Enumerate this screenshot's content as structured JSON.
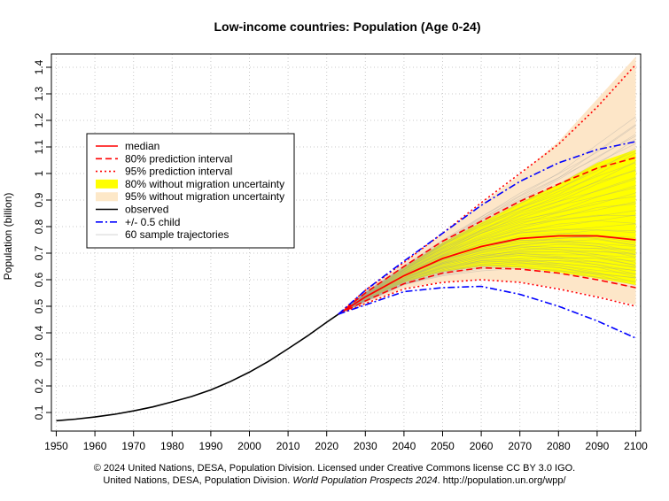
{
  "chart_data": {
    "type": "line",
    "title": "Low-income countries: Population (Age 0-24)",
    "xlabel": "",
    "ylabel": "Population (billion)",
    "xlim": [
      1950,
      2100
    ],
    "ylim": [
      0.03,
      1.45
    ],
    "x_ticks": [
      "1950",
      "1960",
      "1970",
      "1980",
      "1990",
      "2000",
      "2010",
      "2020",
      "2030",
      "2040",
      "2050",
      "2060",
      "2070",
      "2080",
      "2090",
      "2100"
    ],
    "y_ticks": [
      "0.1",
      "0.2",
      "0.3",
      "0.4",
      "0.5",
      "0.6",
      "0.7",
      "0.8",
      "0.9",
      "1",
      "1.1",
      "1.2",
      "1.3",
      "1.4"
    ],
    "grid": true,
    "legend_position": "top-left",
    "legend": [
      {
        "label": "median",
        "style": "solid",
        "color": "#ff0000"
      },
      {
        "label": "80% prediction interval",
        "style": "dashed",
        "color": "#ff0000"
      },
      {
        "label": "95% prediction interval",
        "style": "dotted",
        "color": "#ff0000"
      },
      {
        "label": "80% without migration uncertainty",
        "style": "band",
        "color": "#ffff00"
      },
      {
        "label": "95% without migration uncertainty",
        "style": "band",
        "color": "#fde8c8"
      },
      {
        "label": "observed",
        "style": "solid",
        "color": "#000000"
      },
      {
        "label": "+/- 0.5 child",
        "style": "dashdot",
        "color": "#0000ff"
      },
      {
        "label": "60 sample trajectories",
        "style": "thin",
        "color": "#d3d3d3"
      }
    ],
    "series": [
      {
        "name": "observed",
        "x": [
          1950,
          1955,
          1960,
          1965,
          1970,
          1975,
          1980,
          1985,
          1990,
          1995,
          2000,
          2005,
          2010,
          2015,
          2020,
          2023
        ],
        "values": [
          0.069,
          0.075,
          0.083,
          0.093,
          0.106,
          0.121,
          0.14,
          0.16,
          0.185,
          0.216,
          0.252,
          0.293,
          0.34,
          0.388,
          0.44,
          0.47
        ]
      },
      {
        "name": "median",
        "x": [
          2023,
          2030,
          2040,
          2050,
          2060,
          2070,
          2080,
          2090,
          2100
        ],
        "values": [
          0.47,
          0.535,
          0.615,
          0.68,
          0.725,
          0.755,
          0.765,
          0.765,
          0.75
        ]
      },
      {
        "name": "80% upper",
        "x": [
          2023,
          2030,
          2040,
          2050,
          2060,
          2070,
          2080,
          2090,
          2100
        ],
        "values": [
          0.47,
          0.55,
          0.65,
          0.745,
          0.82,
          0.895,
          0.96,
          1.02,
          1.06
        ]
      },
      {
        "name": "80% lower",
        "x": [
          2023,
          2030,
          2040,
          2050,
          2060,
          2070,
          2080,
          2090,
          2100
        ],
        "values": [
          0.47,
          0.52,
          0.585,
          0.625,
          0.645,
          0.64,
          0.625,
          0.6,
          0.57
        ]
      },
      {
        "name": "95% upper",
        "x": [
          2023,
          2030,
          2040,
          2050,
          2060,
          2070,
          2080,
          2090,
          2100
        ],
        "values": [
          0.47,
          0.56,
          0.665,
          0.775,
          0.89,
          1.0,
          1.11,
          1.25,
          1.41
        ]
      },
      {
        "name": "95% lower",
        "x": [
          2023,
          2030,
          2040,
          2050,
          2060,
          2070,
          2080,
          2090,
          2100
        ],
        "values": [
          0.47,
          0.51,
          0.565,
          0.59,
          0.6,
          0.59,
          0.565,
          0.535,
          0.5
        ]
      },
      {
        "name": "+0.5 child",
        "x": [
          2023,
          2030,
          2040,
          2050,
          2060,
          2070,
          2080,
          2090,
          2100
        ],
        "values": [
          0.47,
          0.56,
          0.67,
          0.775,
          0.88,
          0.97,
          1.04,
          1.09,
          1.12
        ]
      },
      {
        "name": "-0.5 child",
        "x": [
          2023,
          2030,
          2040,
          2050,
          2060,
          2070,
          2080,
          2090,
          2100
        ],
        "values": [
          0.47,
          0.505,
          0.555,
          0.57,
          0.575,
          0.545,
          0.5,
          0.445,
          0.38
        ]
      },
      {
        "name": "80% w/o migration upper",
        "x": [
          2023,
          2030,
          2040,
          2050,
          2060,
          2070,
          2080,
          2090,
          2100
        ],
        "values": [
          0.47,
          0.548,
          0.645,
          0.74,
          0.815,
          0.89,
          0.96,
          1.04,
          1.09
        ]
      },
      {
        "name": "80% w/o migration lower",
        "x": [
          2023,
          2030,
          2040,
          2050,
          2060,
          2070,
          2080,
          2090,
          2100
        ],
        "values": [
          0.47,
          0.522,
          0.59,
          0.63,
          0.65,
          0.645,
          0.628,
          0.605,
          0.58
        ]
      },
      {
        "name": "95% w/o migration upper",
        "x": [
          2023,
          2030,
          2040,
          2050,
          2060,
          2070,
          2080,
          2090,
          2100
        ],
        "values": [
          0.47,
          0.558,
          0.662,
          0.772,
          0.885,
          0.995,
          1.12,
          1.28,
          1.44
        ]
      },
      {
        "name": "95% w/o migration lower",
        "x": [
          2023,
          2030,
          2040,
          2050,
          2060,
          2070,
          2080,
          2090,
          2100
        ],
        "values": [
          0.47,
          0.512,
          0.568,
          0.592,
          0.602,
          0.592,
          0.568,
          0.538,
          0.505
        ]
      }
    ],
    "trajectory_count": 60
  },
  "footer": {
    "line1": "© 2024 United Nations, DESA, Population Division. Licensed under Creative Commons license CC BY 3.0 IGO.",
    "line2_prefix": "United Nations, DESA, Population Division. ",
    "line2_italic": "World Population Prospects 2024",
    "line2_suffix": ". http://population.un.org/wpp/"
  }
}
